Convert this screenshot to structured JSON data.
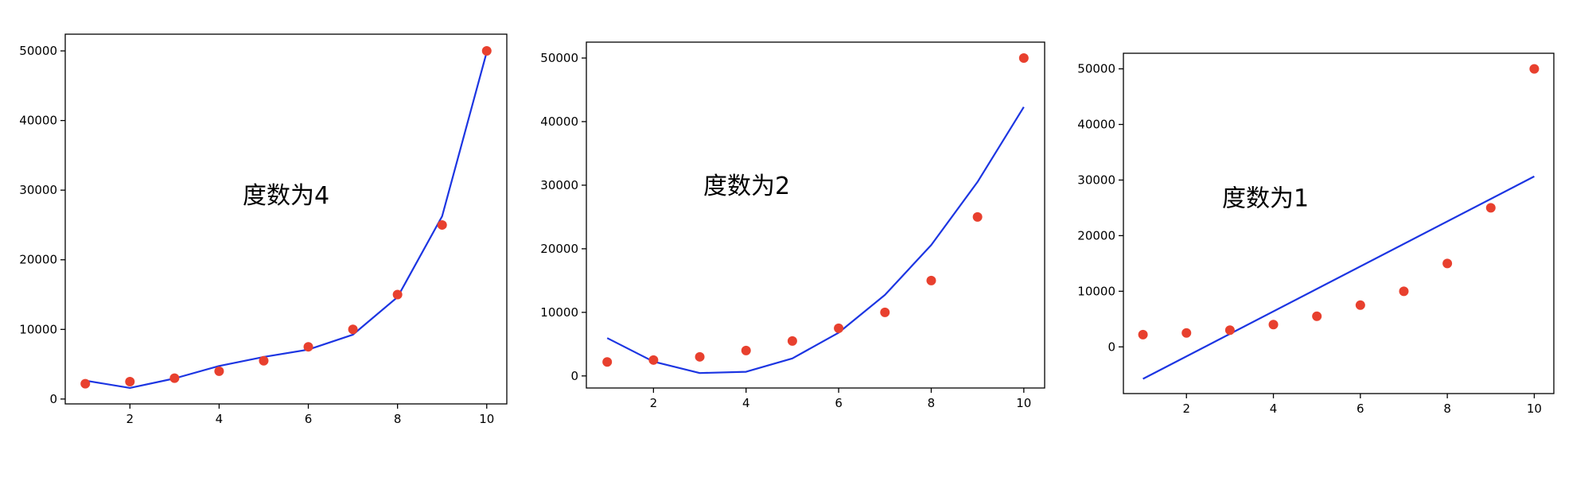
{
  "chart_data": [
    {
      "type": "line",
      "title": "",
      "annotation": "度数为4",
      "xlabel": "",
      "ylabel": "",
      "x_ticks": [
        2,
        4,
        6,
        8,
        10
      ],
      "y_ticks": [
        0,
        10000,
        20000,
        30000,
        40000,
        50000
      ],
      "xlim": [
        0.55,
        10.45
      ],
      "ylim": [
        -700,
        52400
      ],
      "grid": false,
      "legend": "none",
      "series": [
        {
          "type": "scatter",
          "x": [
            1,
            2,
            3,
            4,
            5,
            6,
            7,
            8,
            9,
            10
          ],
          "values": [
            2200,
            2500,
            3000,
            4000,
            5500,
            7500,
            10000,
            15000,
            25000,
            50000
          ],
          "color": "#e8402e"
        },
        {
          "type": "line",
          "x": [
            1,
            2,
            3,
            4,
            5,
            6,
            7,
            8,
            9,
            10
          ],
          "values": [
            2650,
            1600,
            2950,
            4750,
            6050,
            7100,
            9250,
            14650,
            26250,
            49850
          ],
          "color": "#1c35e2"
        }
      ]
    },
    {
      "type": "line",
      "title": "",
      "annotation": "度数为2",
      "xlabel": "",
      "ylabel": "",
      "x_ticks": [
        2,
        4,
        6,
        8,
        10
      ],
      "y_ticks": [
        0,
        10000,
        20000,
        30000,
        40000,
        50000
      ],
      "xlim": [
        0.55,
        10.45
      ],
      "ylim": [
        -1900,
        52500
      ],
      "grid": false,
      "legend": "none",
      "series": [
        {
          "type": "scatter",
          "x": [
            1,
            2,
            3,
            4,
            5,
            6,
            7,
            8,
            9,
            10
          ],
          "values": [
            2200,
            2500,
            3000,
            4000,
            5500,
            7500,
            10000,
            15000,
            25000,
            50000
          ],
          "color": "#e8402e"
        },
        {
          "type": "line",
          "x": [
            1,
            2,
            3,
            4,
            5,
            6,
            7,
            8,
            9,
            10
          ],
          "values": [
            5950,
            2250,
            450,
            650,
            2750,
            6800,
            12750,
            20600,
            30500,
            42300
          ],
          "color": "#1c35e2"
        }
      ]
    },
    {
      "type": "line",
      "title": "",
      "annotation": "度数为1",
      "xlabel": "",
      "ylabel": "",
      "x_ticks": [
        2,
        4,
        6,
        8,
        10
      ],
      "y_ticks": [
        0,
        10000,
        20000,
        30000,
        40000,
        50000
      ],
      "xlim": [
        0.55,
        10.45
      ],
      "ylim": [
        -8400,
        52800
      ],
      "grid": false,
      "legend": "none",
      "series": [
        {
          "type": "scatter",
          "x": [
            1,
            2,
            3,
            4,
            5,
            6,
            7,
            8,
            9,
            10
          ],
          "values": [
            2200,
            2500,
            3000,
            4000,
            5500,
            7500,
            10000,
            15000,
            25000,
            50000
          ],
          "color": "#e8402e"
        },
        {
          "type": "line",
          "x": [
            1,
            10
          ],
          "values": [
            -5750,
            30650
          ],
          "color": "#1c35e2"
        }
      ]
    }
  ]
}
